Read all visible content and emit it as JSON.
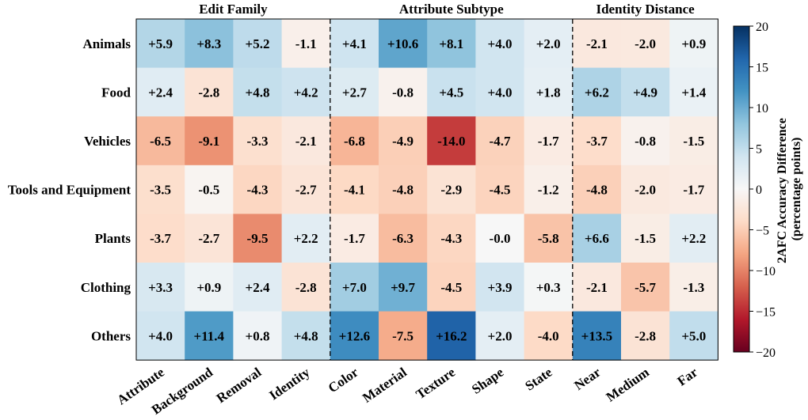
{
  "chart_data": {
    "type": "heatmap",
    "rows": [
      "Animals",
      "Food",
      "Vehicles",
      "Tools and Equipment",
      "Plants",
      "Clothing",
      "Others"
    ],
    "columns": [
      "Attribute",
      "Background",
      "Removal",
      "Identity",
      "Color",
      "Material",
      "Texture",
      "Shape",
      "State",
      "Near",
      "Medium",
      "Far"
    ],
    "column_groups": [
      {
        "name": "Edit Family",
        "columns": [
          "Attribute",
          "Background",
          "Removal",
          "Identity"
        ]
      },
      {
        "name": "Attribute Subtype",
        "columns": [
          "Color",
          "Material",
          "Texture",
          "Shape",
          "State"
        ]
      },
      {
        "name": "Identity Distance",
        "columns": [
          "Near",
          "Medium",
          "Far"
        ]
      }
    ],
    "values": [
      [
        5.9,
        8.3,
        5.2,
        -1.1,
        4.1,
        10.6,
        8.1,
        4.0,
        2.0,
        -2.1,
        -2.0,
        0.9
      ],
      [
        2.4,
        -2.8,
        4.8,
        4.2,
        2.7,
        -0.8,
        4.5,
        4.0,
        1.8,
        6.2,
        4.9,
        1.4
      ],
      [
        -6.5,
        -9.1,
        -3.3,
        -2.1,
        -6.8,
        -4.9,
        -14.0,
        -4.7,
        -1.7,
        -3.7,
        -0.8,
        -1.5
      ],
      [
        -3.5,
        -0.5,
        -4.3,
        -2.7,
        -4.1,
        -4.8,
        -2.9,
        -4.5,
        -1.2,
        -4.8,
        -2.0,
        -1.7
      ],
      [
        -3.7,
        -2.7,
        -9.5,
        2.2,
        -1.7,
        -6.3,
        -4.3,
        -0.0,
        -5.8,
        6.6,
        -1.5,
        2.2
      ],
      [
        3.3,
        0.9,
        2.4,
        -2.8,
        7.0,
        9.7,
        -4.5,
        3.9,
        0.3,
        -2.1,
        -5.7,
        -1.3
      ],
      [
        4.0,
        11.4,
        0.8,
        4.8,
        12.6,
        -7.5,
        16.2,
        2.0,
        -4.0,
        13.5,
        -2.8,
        5.0
      ]
    ],
    "cell_labels": [
      [
        "+5.9",
        "+8.3",
        "+5.2",
        "-1.1",
        "+4.1",
        "+10.6",
        "+8.1",
        "+4.0",
        "+2.0",
        "-2.1",
        "-2.0",
        "+0.9"
      ],
      [
        "+2.4",
        "-2.8",
        "+4.8",
        "+4.2",
        "+2.7",
        "-0.8",
        "+4.5",
        "+4.0",
        "+1.8",
        "+6.2",
        "+4.9",
        "+1.4"
      ],
      [
        "-6.5",
        "-9.1",
        "-3.3",
        "-2.1",
        "-6.8",
        "-4.9",
        "-14.0",
        "-4.7",
        "-1.7",
        "-3.7",
        "-0.8",
        "-1.5"
      ],
      [
        "-3.5",
        "-0.5",
        "-4.3",
        "-2.7",
        "-4.1",
        "-4.8",
        "-2.9",
        "-4.5",
        "-1.2",
        "-4.8",
        "-2.0",
        "-1.7"
      ],
      [
        "-3.7",
        "-2.7",
        "-9.5",
        "+2.2",
        "-1.7",
        "-6.3",
        "-4.3",
        "-0.0",
        "-5.8",
        "+6.6",
        "-1.5",
        "+2.2"
      ],
      [
        "+3.3",
        "+0.9",
        "+2.4",
        "-2.8",
        "+7.0",
        "+9.7",
        "-4.5",
        "+3.9",
        "+0.3",
        "-2.1",
        "-5.7",
        "-1.3"
      ],
      [
        "+4.0",
        "+11.4",
        "+0.8",
        "+4.8",
        "+12.6",
        "-7.5",
        "+16.2",
        "+2.0",
        "-4.0",
        "+13.5",
        "-2.8",
        "+5.0"
      ]
    ],
    "colorbar": {
      "title_line1": "2AFC Accuracy Difference",
      "title_line2": "(percentage points)",
      "vmin": -20,
      "vmax": 20,
      "ticks": [
        -20,
        -15,
        -10,
        -5,
        0,
        5,
        10,
        15,
        20
      ],
      "tick_labels": [
        "−20",
        "−15",
        "−10",
        "−5",
        "0",
        "5",
        "10",
        "15",
        "20"
      ],
      "colormap": "RdBu"
    },
    "group_separators_after_columns": [
      "Identity",
      "State"
    ]
  }
}
